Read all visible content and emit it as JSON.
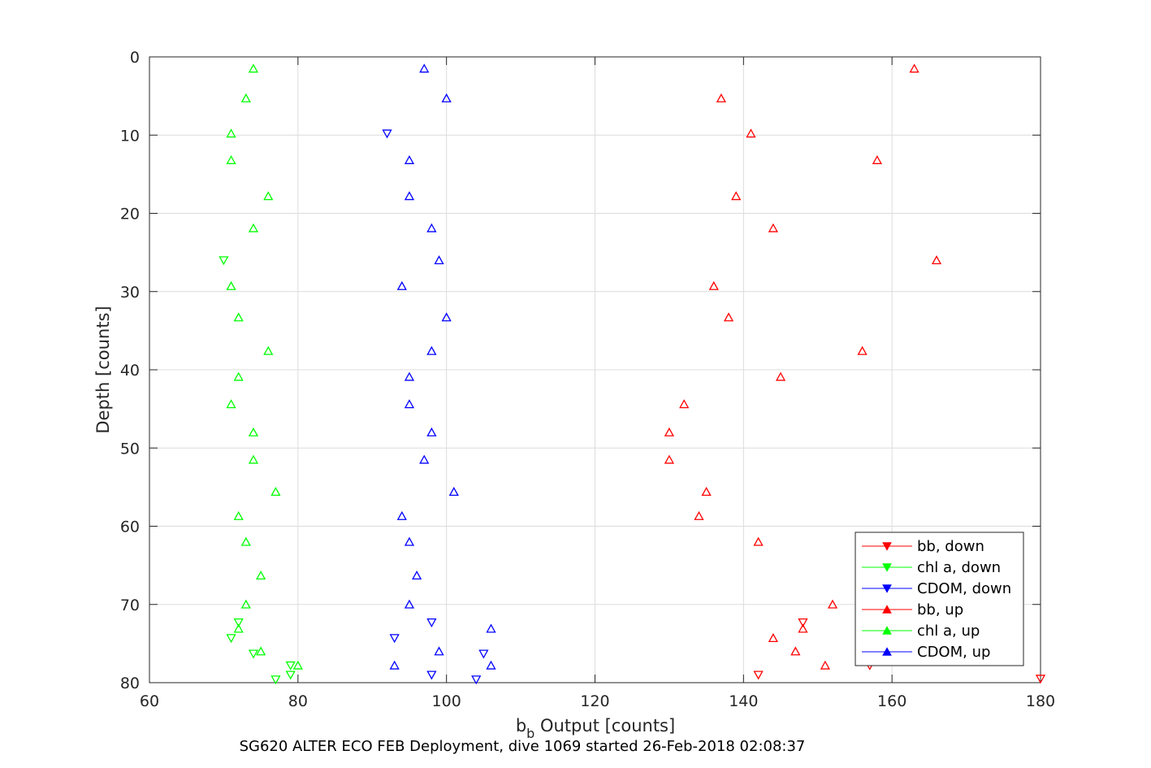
{
  "chart_data": {
    "type": "scatter",
    "xlabel_main": "b",
    "xlabel_sub": "b",
    "xlabel_rest": " Output [counts]",
    "ylabel": "Depth [counts]",
    "caption": "SG620 ALTER ECO FEB Deployment, dive 1069 started 26-Feb-2018 02:08:37",
    "xlim": [
      60,
      180
    ],
    "ylim": [
      0,
      80
    ],
    "y_reversed": true,
    "grid": true,
    "legend_position": "bottom-right",
    "xticks": [
      60,
      80,
      100,
      120,
      140,
      160,
      180
    ],
    "yticks": [
      0,
      10,
      20,
      30,
      40,
      50,
      60,
      70,
      80
    ],
    "series": [
      {
        "name": "bb, down",
        "color": "#ff0000",
        "marker": "triangle-down",
        "points": [
          [
            180,
            79.5
          ],
          [
            157,
            77.8
          ],
          [
            148,
            72.3
          ],
          [
            142,
            79.0
          ]
        ]
      },
      {
        "name": "chl a, down",
        "color": "#00ff00",
        "marker": "triangle-down",
        "points": [
          [
            72,
            72.3
          ],
          [
            71,
            74.3
          ],
          [
            74,
            76.3
          ],
          [
            79,
            77.8
          ],
          [
            79,
            79.0
          ],
          [
            77,
            79.6
          ],
          [
            70,
            26.0
          ]
        ]
      },
      {
        "name": "CDOM, down",
        "color": "#0000ff",
        "marker": "triangle-down",
        "points": [
          [
            98,
            72.3
          ],
          [
            93,
            74.3
          ],
          [
            105,
            76.3
          ],
          [
            98,
            79.0
          ],
          [
            104,
            79.6
          ],
          [
            92,
            9.8
          ]
        ]
      },
      {
        "name": "bb, up",
        "color": "#ff0000",
        "marker": "triangle-up",
        "points": [
          [
            163,
            1.5
          ],
          [
            137,
            5.3
          ],
          [
            141,
            9.8
          ],
          [
            158,
            13.2
          ],
          [
            139,
            17.8
          ],
          [
            144,
            21.9
          ],
          [
            166,
            26.0
          ],
          [
            136,
            29.3
          ],
          [
            138,
            33.3
          ],
          [
            156,
            37.6
          ],
          [
            145,
            40.9
          ],
          [
            132,
            44.4
          ],
          [
            130,
            48.0
          ],
          [
            130,
            51.5
          ],
          [
            135,
            55.6
          ],
          [
            134,
            58.7
          ],
          [
            142,
            62.0
          ],
          [
            152,
            70.0
          ],
          [
            148,
            73.1
          ],
          [
            144,
            74.3
          ],
          [
            147,
            76.0
          ],
          [
            151,
            77.8
          ]
        ]
      },
      {
        "name": "chl a, up",
        "color": "#00ff00",
        "marker": "triangle-up",
        "points": [
          [
            74,
            1.5
          ],
          [
            73,
            5.3
          ],
          [
            71,
            9.8
          ],
          [
            71,
            13.2
          ],
          [
            76,
            17.8
          ],
          [
            74,
            21.9
          ],
          [
            71,
            29.3
          ],
          [
            72,
            33.3
          ],
          [
            76,
            37.6
          ],
          [
            72,
            40.9
          ],
          [
            71,
            44.4
          ],
          [
            74,
            48.0
          ],
          [
            74,
            51.5
          ],
          [
            77,
            55.6
          ],
          [
            72,
            58.7
          ],
          [
            73,
            62.0
          ],
          [
            75,
            66.3
          ],
          [
            73,
            70.0
          ],
          [
            72,
            73.1
          ],
          [
            75,
            76.0
          ],
          [
            80,
            77.8
          ]
        ]
      },
      {
        "name": "CDOM, up",
        "color": "#0000ff",
        "marker": "triangle-up",
        "points": [
          [
            97,
            1.5
          ],
          [
            100,
            5.3
          ],
          [
            95,
            13.2
          ],
          [
            95,
            17.8
          ],
          [
            98,
            21.9
          ],
          [
            99,
            26.0
          ],
          [
            94,
            29.3
          ],
          [
            100,
            33.3
          ],
          [
            98,
            37.6
          ],
          [
            95,
            40.9
          ],
          [
            95,
            44.4
          ],
          [
            98,
            48.0
          ],
          [
            97,
            51.5
          ],
          [
            101,
            55.6
          ],
          [
            94,
            58.7
          ],
          [
            95,
            62.0
          ],
          [
            96,
            66.3
          ],
          [
            95,
            70.0
          ],
          [
            106,
            73.1
          ],
          [
            99,
            76.0
          ],
          [
            106,
            77.8
          ],
          [
            93,
            77.8
          ]
        ]
      }
    ]
  }
}
